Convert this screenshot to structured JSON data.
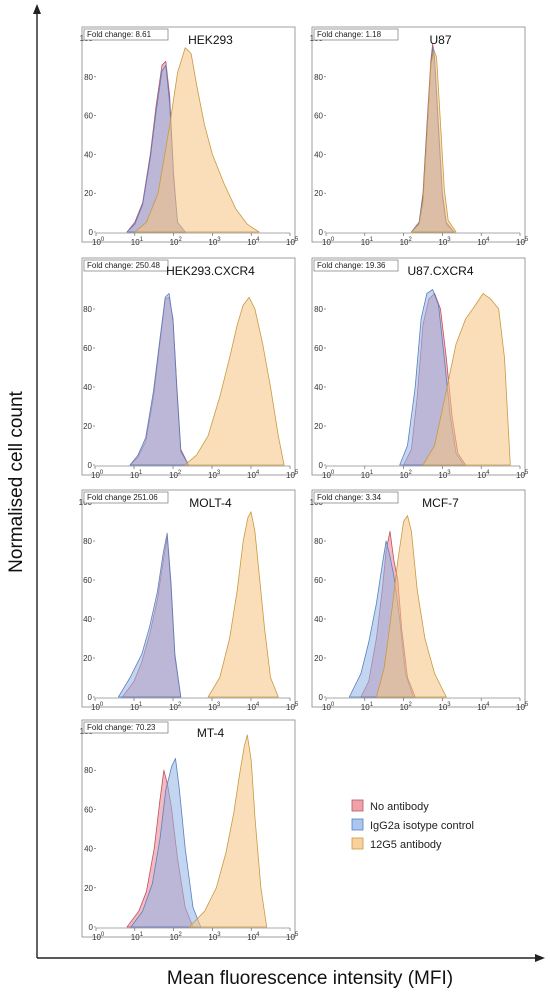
{
  "figure": {
    "ylabel": "Normalised cell count",
    "xlabel": "Mean fluorescence intensity (MFI)"
  },
  "colors": {
    "no_antibody": "#e8848f",
    "isotype": "#8fb4e8",
    "antibody_12g5": "#f6c27f"
  },
  "legend": [
    {
      "label": "No antibody",
      "color": "#e8848f"
    },
    {
      "label": "IgG2a isotype control",
      "color": "#8fb4e8"
    },
    {
      "label": "12G5 antibody",
      "color": "#f6c27f"
    }
  ],
  "chart_data": [
    {
      "type": "area",
      "title": "HEK293",
      "fold_label": "Fold change: 8.61",
      "x_scale": "log",
      "xlim": [
        0,
        5
      ],
      "ylim": [
        0,
        100
      ],
      "yticks": [
        0,
        20,
        40,
        60,
        80,
        100
      ],
      "series": [
        {
          "name": "No antibody",
          "x": [
            0.8,
            1.0,
            1.2,
            1.4,
            1.55,
            1.7,
            1.8,
            1.9,
            2.0,
            2.1,
            2.3
          ],
          "y": [
            0,
            5,
            15,
            40,
            65,
            86,
            88,
            70,
            30,
            5,
            0
          ]
        },
        {
          "name": "IgG2a isotype control",
          "x": [
            0.8,
            1.0,
            1.2,
            1.4,
            1.55,
            1.7,
            1.8,
            1.9,
            2.0,
            2.1,
            2.3
          ],
          "y": [
            0,
            4,
            14,
            38,
            62,
            83,
            86,
            66,
            28,
            5,
            0
          ]
        },
        {
          "name": "12G5 antibody",
          "x": [
            1.0,
            1.3,
            1.6,
            1.9,
            2.1,
            2.3,
            2.45,
            2.6,
            2.8,
            3.0,
            3.3,
            3.6,
            3.9,
            4.2
          ],
          "y": [
            0,
            5,
            20,
            55,
            82,
            95,
            92,
            75,
            55,
            40,
            25,
            12,
            4,
            0
          ]
        }
      ]
    },
    {
      "type": "area",
      "title": "U87",
      "fold_label": "Fold change: 1.18",
      "x_scale": "log",
      "xlim": [
        0,
        5
      ],
      "ylim": [
        0,
        100
      ],
      "yticks": [
        0,
        20,
        40,
        60,
        80,
        100
      ],
      "series": [
        {
          "name": "No antibody",
          "x": [
            2.2,
            2.4,
            2.5,
            2.6,
            2.7,
            2.75,
            2.8,
            2.9,
            3.0,
            3.1,
            3.3
          ],
          "y": [
            0,
            5,
            20,
            55,
            88,
            97,
            90,
            55,
            20,
            5,
            0
          ]
        },
        {
          "name": "IgG2a isotype control",
          "x": [
            2.2,
            2.4,
            2.5,
            2.6,
            2.7,
            2.75,
            2.8,
            2.9,
            3.0,
            3.1,
            3.3
          ],
          "y": [
            0,
            5,
            18,
            52,
            85,
            95,
            88,
            52,
            18,
            4,
            0
          ]
        },
        {
          "name": "12G5 antibody",
          "x": [
            2.2,
            2.4,
            2.5,
            2.6,
            2.7,
            2.78,
            2.85,
            2.95,
            3.05,
            3.15,
            3.35
          ],
          "y": [
            0,
            4,
            16,
            50,
            86,
            94,
            90,
            56,
            22,
            6,
            0
          ]
        }
      ]
    },
    {
      "type": "area",
      "title": "HEK293.CXCR4",
      "fold_label": "Fold change: 250.48",
      "x_scale": "log",
      "xlim": [
        0,
        5
      ],
      "ylim": [
        0,
        100
      ],
      "yticks": [
        0,
        20,
        40,
        60,
        80
      ],
      "series": [
        {
          "name": "No antibody",
          "x": [
            0.9,
            1.1,
            1.3,
            1.5,
            1.65,
            1.8,
            1.9,
            2.0,
            2.1,
            2.2,
            2.4
          ],
          "y": [
            0,
            4,
            12,
            35,
            60,
            85,
            86,
            75,
            40,
            8,
            0
          ]
        },
        {
          "name": "IgG2a isotype control",
          "x": [
            0.9,
            1.1,
            1.3,
            1.5,
            1.65,
            1.8,
            1.9,
            2.0,
            2.1,
            2.2,
            2.4
          ],
          "y": [
            0,
            5,
            14,
            38,
            62,
            86,
            88,
            74,
            38,
            7,
            0
          ]
        },
        {
          "name": "12G5 antibody",
          "x": [
            2.3,
            2.6,
            2.9,
            3.2,
            3.45,
            3.65,
            3.8,
            3.95,
            4.1,
            4.3,
            4.5,
            4.7,
            4.85
          ],
          "y": [
            0,
            5,
            15,
            35,
            55,
            72,
            82,
            86,
            80,
            62,
            40,
            15,
            0
          ]
        }
      ]
    },
    {
      "type": "area",
      "title": "U87.CXCR4",
      "fold_label": "Fold change: 19.36",
      "x_scale": "log",
      "xlim": [
        0,
        5
      ],
      "ylim": [
        0,
        100
      ],
      "yticks": [
        0,
        20,
        40,
        60,
        80
      ],
      "series": [
        {
          "name": "No antibody",
          "x": [
            2.0,
            2.2,
            2.35,
            2.5,
            2.65,
            2.8,
            2.95,
            3.1,
            3.25,
            3.4,
            3.6
          ],
          "y": [
            0,
            8,
            35,
            72,
            85,
            88,
            80,
            55,
            25,
            6,
            0
          ]
        },
        {
          "name": "IgG2a isotype control",
          "x": [
            1.9,
            2.1,
            2.3,
            2.45,
            2.6,
            2.75,
            2.9,
            3.05,
            3.2,
            3.35,
            3.55
          ],
          "y": [
            0,
            10,
            40,
            75,
            88,
            90,
            82,
            55,
            25,
            6,
            0
          ]
        },
        {
          "name": "12G5 antibody",
          "x": [
            2.5,
            2.8,
            3.1,
            3.35,
            3.6,
            3.85,
            4.05,
            4.25,
            4.45,
            4.6,
            4.75
          ],
          "y": [
            0,
            10,
            38,
            62,
            75,
            82,
            88,
            85,
            80,
            55,
            0
          ]
        }
      ]
    },
    {
      "type": "area",
      "title": "MOLT-4",
      "fold_label": "Fold change 251.06",
      "x_scale": "log",
      "xlim": [
        0,
        5
      ],
      "ylim": [
        0,
        100
      ],
      "yticks": [
        0,
        20,
        40,
        60,
        80,
        100
      ],
      "series": [
        {
          "name": "No antibody",
          "x": [
            0.7,
            1.0,
            1.2,
            1.4,
            1.6,
            1.75,
            1.85,
            1.95,
            2.05,
            2.2
          ],
          "y": [
            0,
            8,
            18,
            32,
            50,
            70,
            82,
            55,
            20,
            0
          ]
        },
        {
          "name": "IgG2a isotype control",
          "x": [
            0.6,
            0.9,
            1.2,
            1.4,
            1.6,
            1.75,
            1.85,
            1.95,
            2.05,
            2.2
          ],
          "y": [
            0,
            10,
            22,
            36,
            54,
            74,
            84,
            58,
            22,
            0
          ]
        },
        {
          "name": "12G5 antibody",
          "x": [
            2.9,
            3.2,
            3.45,
            3.65,
            3.8,
            3.92,
            4.0,
            4.1,
            4.2,
            4.35,
            4.5,
            4.7
          ],
          "y": [
            0,
            10,
            30,
            55,
            80,
            92,
            95,
            85,
            65,
            35,
            10,
            0
          ]
        }
      ]
    },
    {
      "type": "area",
      "title": "MCF-7",
      "fold_label": "Fold change: 3.34",
      "x_scale": "log",
      "xlim": [
        0,
        5
      ],
      "ylim": [
        0,
        100
      ],
      "yticks": [
        0,
        20,
        40,
        60,
        80,
        100
      ],
      "series": [
        {
          "name": "No antibody",
          "x": [
            0.9,
            1.1,
            1.3,
            1.45,
            1.55,
            1.65,
            1.75,
            1.85,
            1.95,
            2.1,
            2.3
          ],
          "y": [
            0,
            8,
            30,
            55,
            75,
            85,
            70,
            60,
            35,
            10,
            0
          ]
        },
        {
          "name": "IgG2a isotype control",
          "x": [
            0.6,
            0.9,
            1.1,
            1.3,
            1.45,
            1.55,
            1.65,
            1.75,
            1.9,
            2.05,
            2.25
          ],
          "y": [
            0,
            12,
            28,
            48,
            68,
            80,
            72,
            62,
            40,
            12,
            0
          ]
        },
        {
          "name": "12G5 antibody",
          "x": [
            1.3,
            1.5,
            1.7,
            1.85,
            2.0,
            2.1,
            2.2,
            2.35,
            2.55,
            2.8,
            3.1
          ],
          "y": [
            0,
            15,
            45,
            70,
            90,
            93,
            85,
            55,
            30,
            12,
            0
          ]
        }
      ]
    },
    {
      "type": "area",
      "title": "MT-4",
      "fold_label": "Fold change: 70.23",
      "x_scale": "log",
      "xlim": [
        0,
        5
      ],
      "ylim": [
        0,
        100
      ],
      "yticks": [
        0,
        20,
        40,
        60,
        80,
        100
      ],
      "series": [
        {
          "name": "No antibody",
          "x": [
            0.8,
            1.1,
            1.3,
            1.5,
            1.65,
            1.75,
            1.85,
            1.95,
            2.1,
            2.3,
            2.5
          ],
          "y": [
            0,
            8,
            18,
            40,
            65,
            80,
            72,
            60,
            35,
            10,
            0
          ]
        },
        {
          "name": "IgG2a isotype control",
          "x": [
            0.9,
            1.2,
            1.45,
            1.65,
            1.8,
            1.95,
            2.05,
            2.15,
            2.3,
            2.5,
            2.7
          ],
          "y": [
            0,
            8,
            22,
            45,
            70,
            82,
            86,
            70,
            40,
            10,
            0
          ]
        },
        {
          "name": "12G5 antibody",
          "x": [
            2.4,
            2.8,
            3.1,
            3.35,
            3.55,
            3.7,
            3.82,
            3.9,
            4.0,
            4.1,
            4.25,
            4.4
          ],
          "y": [
            0,
            8,
            20,
            38,
            58,
            78,
            92,
            98,
            85,
            55,
            20,
            0
          ]
        }
      ]
    }
  ]
}
